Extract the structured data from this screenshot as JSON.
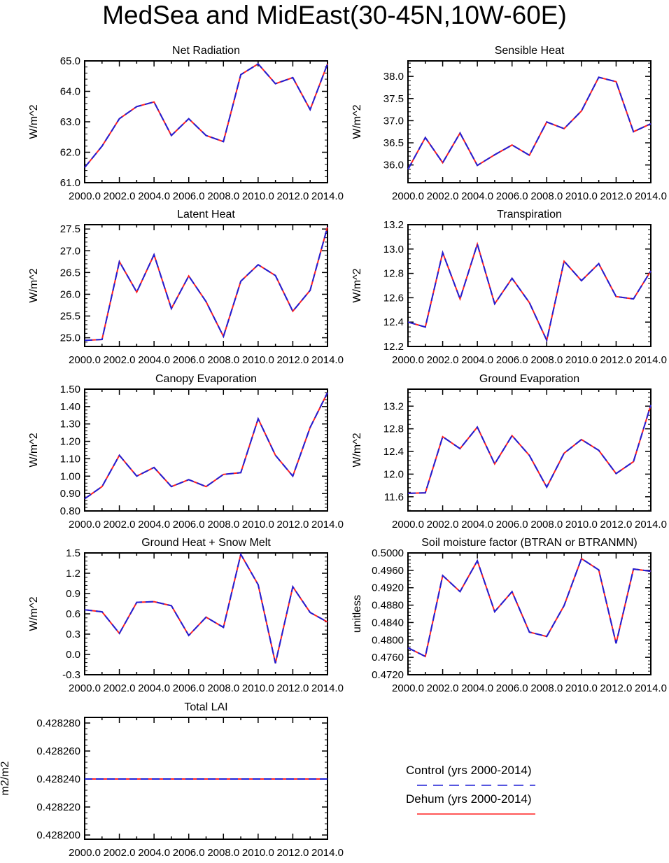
{
  "title": "MedSea and MidEast(30-45N,10W-60E)",
  "colors": {
    "control": "#1f1fd6",
    "dehum": "#ff2020",
    "axis": "#000000"
  },
  "legend": [
    {
      "label": "Control (yrs 2000-2014)",
      "style": "dashed",
      "color": "#1f1fd6"
    },
    {
      "label": "Dehum (yrs 2000-2014)",
      "style": "solid",
      "color": "#ff2020"
    }
  ],
  "chart_data": [
    {
      "type": "line",
      "title": "Net Radiation",
      "ylabel": "W/m^2",
      "xlim": [
        2000,
        2014
      ],
      "ylim": [
        61,
        65
      ],
      "xticks": [
        2000,
        2002,
        2004,
        2006,
        2008,
        2010,
        2012,
        2014
      ],
      "xticklabels": [
        "2000.0",
        "2002.0",
        "2004.0",
        "2006.0",
        "2008.0",
        "2010.0",
        "2012.0",
        "2014.0"
      ],
      "yticks": [
        61,
        62,
        63,
        64,
        65
      ],
      "yticklabels": [
        "61.0",
        "62.0",
        "63.0",
        "64.0",
        "65.0"
      ],
      "x": [
        2000,
        2001,
        2002,
        2003,
        2004,
        2005,
        2006,
        2007,
        2008,
        2009,
        2010,
        2011,
        2012,
        2013,
        2014
      ],
      "series": [
        {
          "name": "Control (yrs 2000-2014)",
          "values": [
            61.5,
            62.2,
            63.1,
            63.5,
            63.65,
            62.55,
            63.1,
            62.55,
            62.35,
            64.55,
            64.9,
            64.25,
            64.45,
            63.4,
            64.9
          ]
        },
        {
          "name": "Dehum (yrs 2000-2014)",
          "values": [
            61.5,
            62.2,
            63.1,
            63.5,
            63.65,
            62.55,
            63.1,
            62.55,
            62.35,
            64.55,
            64.9,
            64.25,
            64.45,
            63.4,
            64.9
          ]
        }
      ]
    },
    {
      "type": "line",
      "title": "Sensible Heat",
      "ylabel": "W/m^2",
      "xlim": [
        2000,
        2014
      ],
      "ylim": [
        35.6,
        38.35
      ],
      "xticks": [
        2000,
        2002,
        2004,
        2006,
        2008,
        2010,
        2012,
        2014
      ],
      "xticklabels": [
        "2000.0",
        "2002.0",
        "2004.0",
        "2006.0",
        "2008.0",
        "2010.0",
        "2012.0",
        "2014.0"
      ],
      "yticks": [
        36.0,
        36.5,
        37.0,
        37.5,
        38.0
      ],
      "yticklabels": [
        "36.0",
        "36.5",
        "37.0",
        "37.5",
        "38.0"
      ],
      "x": [
        2000,
        2001,
        2002,
        2003,
        2004,
        2005,
        2006,
        2007,
        2008,
        2009,
        2010,
        2011,
        2012,
        2013,
        2014
      ],
      "series": [
        {
          "name": "Control (yrs 2000-2014)",
          "values": [
            35.9,
            36.62,
            36.05,
            36.72,
            35.99,
            36.23,
            36.45,
            36.22,
            36.97,
            36.82,
            37.22,
            37.98,
            37.88,
            36.75,
            36.93
          ]
        },
        {
          "name": "Dehum (yrs 2000-2014)",
          "values": [
            35.9,
            36.62,
            36.05,
            36.72,
            35.99,
            36.23,
            36.45,
            36.22,
            36.97,
            36.82,
            37.22,
            37.98,
            37.88,
            36.75,
            36.93
          ]
        }
      ]
    },
    {
      "type": "line",
      "title": "Latent Heat",
      "ylabel": "W/m^2",
      "xlim": [
        2000,
        2014
      ],
      "ylim": [
        24.8,
        27.6
      ],
      "xticks": [
        2000,
        2002,
        2004,
        2006,
        2008,
        2010,
        2012,
        2014
      ],
      "xticklabels": [
        "2000.0",
        "2002.0",
        "2004.0",
        "2006.0",
        "2008.0",
        "2010.0",
        "2012.0",
        "2014.0"
      ],
      "yticks": [
        25.0,
        25.5,
        26.0,
        26.5,
        27.0,
        27.5
      ],
      "yticklabels": [
        "25.0",
        "25.5",
        "26.0",
        "26.5",
        "27.0",
        "27.5"
      ],
      "x": [
        2000,
        2001,
        2002,
        2003,
        2004,
        2005,
        2006,
        2007,
        2008,
        2009,
        2010,
        2011,
        2012,
        2013,
        2014
      ],
      "series": [
        {
          "name": "Control (yrs 2000-2014)",
          "values": [
            24.94,
            24.96,
            26.75,
            26.05,
            26.91,
            25.67,
            26.42,
            25.83,
            25.03,
            26.3,
            26.68,
            26.43,
            25.61,
            26.09,
            27.55
          ]
        },
        {
          "name": "Dehum (yrs 2000-2014)",
          "values": [
            24.94,
            24.96,
            26.75,
            26.05,
            26.91,
            25.67,
            26.42,
            25.83,
            25.03,
            26.3,
            26.68,
            26.43,
            25.61,
            26.09,
            27.55
          ]
        }
      ]
    },
    {
      "type": "line",
      "title": "Transpiration",
      "ylabel": "W/m^2",
      "xlim": [
        2000,
        2014
      ],
      "ylim": [
        12.2,
        13.2
      ],
      "xticks": [
        2000,
        2002,
        2004,
        2006,
        2008,
        2010,
        2012,
        2014
      ],
      "xticklabels": [
        "2000.0",
        "2002.0",
        "2004.0",
        "2006.0",
        "2008.0",
        "2010.0",
        "2012.0",
        "2014.0"
      ],
      "yticks": [
        12.2,
        12.4,
        12.6,
        12.8,
        13.0,
        13.2
      ],
      "yticklabels": [
        "12.2",
        "12.4",
        "12.6",
        "12.8",
        "13.0",
        "13.2"
      ],
      "x": [
        2000,
        2001,
        2002,
        2003,
        2004,
        2005,
        2006,
        2007,
        2008,
        2009,
        2010,
        2011,
        2012,
        2013,
        2014
      ],
      "series": [
        {
          "name": "Control (yrs 2000-2014)",
          "values": [
            12.4,
            12.36,
            12.97,
            12.59,
            13.04,
            12.55,
            12.76,
            12.56,
            12.25,
            12.9,
            12.74,
            12.88,
            12.61,
            12.59,
            12.82
          ]
        },
        {
          "name": "Dehum (yrs 2000-2014)",
          "values": [
            12.4,
            12.36,
            12.97,
            12.59,
            13.04,
            12.55,
            12.76,
            12.56,
            12.25,
            12.9,
            12.74,
            12.88,
            12.61,
            12.59,
            12.82
          ]
        }
      ]
    },
    {
      "type": "line",
      "title": "Canopy Evaporation",
      "ylabel": "W/m^2",
      "xlim": [
        2000,
        2014
      ],
      "ylim": [
        0.8,
        1.5
      ],
      "xticks": [
        2000,
        2002,
        2004,
        2006,
        2008,
        2010,
        2012,
        2014
      ],
      "xticklabels": [
        "2000.0",
        "2002.0",
        "2004.0",
        "2006.0",
        "2008.0",
        "2010.0",
        "2012.0",
        "2014.0"
      ],
      "yticks": [
        0.8,
        0.9,
        1.0,
        1.1,
        1.2,
        1.3,
        1.4,
        1.5
      ],
      "yticklabels": [
        "0.80",
        "0.90",
        "1.00",
        "1.10",
        "1.20",
        "1.30",
        "1.40",
        "1.50"
      ],
      "x": [
        2000,
        2001,
        2002,
        2003,
        2004,
        2005,
        2006,
        2007,
        2008,
        2009,
        2010,
        2011,
        2012,
        2013,
        2014
      ],
      "series": [
        {
          "name": "Control (yrs 2000-2014)",
          "values": [
            0.87,
            0.94,
            1.12,
            1.0,
            1.05,
            0.94,
            0.98,
            0.94,
            1.01,
            1.02,
            1.33,
            1.12,
            1.0,
            1.28,
            1.48
          ]
        },
        {
          "name": "Dehum (yrs 2000-2014)",
          "values": [
            0.87,
            0.94,
            1.12,
            1.0,
            1.05,
            0.94,
            0.98,
            0.94,
            1.01,
            1.02,
            1.33,
            1.12,
            1.0,
            1.28,
            1.48
          ]
        }
      ]
    },
    {
      "type": "line",
      "title": "Ground Evaporation",
      "ylabel": "W/m^2",
      "xlim": [
        2000,
        2014
      ],
      "ylim": [
        11.35,
        13.5
      ],
      "xticks": [
        2000,
        2002,
        2004,
        2006,
        2008,
        2010,
        2012,
        2014
      ],
      "xticklabels": [
        "2000.0",
        "2002.0",
        "2004.0",
        "2006.0",
        "2008.0",
        "2010.0",
        "2012.0",
        "2014.0"
      ],
      "yticks": [
        11.6,
        12.0,
        12.4,
        12.8,
        13.2
      ],
      "yticklabels": [
        "11.6",
        "12.0",
        "12.4",
        "12.8",
        "13.2"
      ],
      "x": [
        2000,
        2001,
        2002,
        2003,
        2004,
        2005,
        2006,
        2007,
        2008,
        2009,
        2010,
        2011,
        2012,
        2013,
        2014
      ],
      "series": [
        {
          "name": "Control (yrs 2000-2014)",
          "values": [
            11.66,
            11.67,
            12.66,
            12.45,
            12.83,
            12.18,
            12.68,
            12.33,
            11.77,
            12.37,
            12.61,
            12.42,
            12.01,
            12.22,
            13.22
          ]
        },
        {
          "name": "Dehum (yrs 2000-2014)",
          "values": [
            11.66,
            11.67,
            12.66,
            12.45,
            12.83,
            12.18,
            12.68,
            12.33,
            11.77,
            12.37,
            12.61,
            12.42,
            12.01,
            12.22,
            13.22
          ]
        }
      ]
    },
    {
      "type": "line",
      "title": "Ground Heat + Snow Melt",
      "ylabel": "W/m^2",
      "xlim": [
        2000,
        2014
      ],
      "ylim": [
        -0.3,
        1.5
      ],
      "xticks": [
        2000,
        2002,
        2004,
        2006,
        2008,
        2010,
        2012,
        2014
      ],
      "xticklabels": [
        "2000.0",
        "2002.0",
        "2004.0",
        "2006.0",
        "2008.0",
        "2010.0",
        "2012.0",
        "2014.0"
      ],
      "yticks": [
        -0.3,
        0.0,
        0.3,
        0.6,
        0.9,
        1.2,
        1.5
      ],
      "yticklabels": [
        "-0.3",
        "0.0",
        "0.3",
        "0.6",
        "0.9",
        "1.2",
        "1.5"
      ],
      "x": [
        2000,
        2001,
        2002,
        2003,
        2004,
        2005,
        2006,
        2007,
        2008,
        2009,
        2010,
        2011,
        2012,
        2013,
        2014
      ],
      "series": [
        {
          "name": "Control (yrs 2000-2014)",
          "values": [
            0.66,
            0.63,
            0.31,
            0.77,
            0.78,
            0.72,
            0.28,
            0.55,
            0.4,
            1.48,
            1.03,
            -0.13,
            1.0,
            0.62,
            0.48
          ]
        },
        {
          "name": "Dehum (yrs 2000-2014)",
          "values": [
            0.66,
            0.63,
            0.31,
            0.77,
            0.78,
            0.72,
            0.28,
            0.55,
            0.4,
            1.48,
            1.03,
            -0.13,
            1.0,
            0.62,
            0.48
          ]
        }
      ]
    },
    {
      "type": "line",
      "title": "Soil moisture factor (BTRAN or BTRANMN)",
      "ylabel": "unitless",
      "xlim": [
        2000,
        2014
      ],
      "ylim": [
        0.472,
        0.5
      ],
      "xticks": [
        2000,
        2002,
        2004,
        2006,
        2008,
        2010,
        2012,
        2014
      ],
      "xticklabels": [
        "2000.0",
        "2002.0",
        "2004.0",
        "2006.0",
        "2008.0",
        "2010.0",
        "2012.0",
        "2014.0"
      ],
      "yticks": [
        0.472,
        0.476,
        0.48,
        0.484,
        0.488,
        0.492,
        0.496,
        0.5
      ],
      "yticklabels": [
        "0.4720",
        "0.4760",
        "0.4800",
        "0.4840",
        "0.4880",
        "0.4920",
        "0.4960",
        "0.5000"
      ],
      "x": [
        2000,
        2001,
        2002,
        2003,
        2004,
        2005,
        2006,
        2007,
        2008,
        2009,
        2010,
        2011,
        2012,
        2013,
        2014
      ],
      "series": [
        {
          "name": "Control (yrs 2000-2014)",
          "values": [
            0.4782,
            0.4762,
            0.4948,
            0.4911,
            0.4982,
            0.4865,
            0.4911,
            0.4818,
            0.4808,
            0.4879,
            0.4987,
            0.4961,
            0.4792,
            0.4963,
            0.4958
          ]
        },
        {
          "name": "Dehum (yrs 2000-2014)",
          "values": [
            0.4782,
            0.4762,
            0.4948,
            0.4911,
            0.4982,
            0.4865,
            0.4911,
            0.4818,
            0.4808,
            0.4879,
            0.4987,
            0.4961,
            0.4792,
            0.4963,
            0.4958
          ]
        }
      ]
    },
    {
      "type": "line",
      "title": "Total LAI",
      "ylabel": "m2/m2",
      "xlim": [
        2000,
        2014
      ],
      "ylim": [
        0.428197,
        0.428284
      ],
      "xticks": [
        2000,
        2002,
        2004,
        2006,
        2008,
        2010,
        2012,
        2014
      ],
      "xticklabels": [
        "2000.0",
        "2002.0",
        "2004.0",
        "2006.0",
        "2008.0",
        "2010.0",
        "2012.0",
        "2014.0"
      ],
      "yticks": [
        0.4282,
        0.42822,
        0.42824,
        0.42826,
        0.42828
      ],
      "yticklabels": [
        "0.428200",
        "0.428220",
        "0.428240",
        "0.428260",
        "0.428280"
      ],
      "x": [
        2000,
        2001,
        2002,
        2003,
        2004,
        2005,
        2006,
        2007,
        2008,
        2009,
        2010,
        2011,
        2012,
        2013,
        2014
      ],
      "series": [
        {
          "name": "Control (yrs 2000-2014)",
          "values": [
            0.42824,
            0.42824,
            0.42824,
            0.42824,
            0.42824,
            0.42824,
            0.42824,
            0.42824,
            0.42824,
            0.42824,
            0.42824,
            0.42824,
            0.42824,
            0.42824,
            0.42824
          ]
        },
        {
          "name": "Dehum (yrs 2000-2014)",
          "values": [
            0.42824,
            0.42824,
            0.42824,
            0.42824,
            0.42824,
            0.42824,
            0.42824,
            0.42824,
            0.42824,
            0.42824,
            0.42824,
            0.42824,
            0.42824,
            0.42824,
            0.42824
          ]
        }
      ]
    }
  ]
}
